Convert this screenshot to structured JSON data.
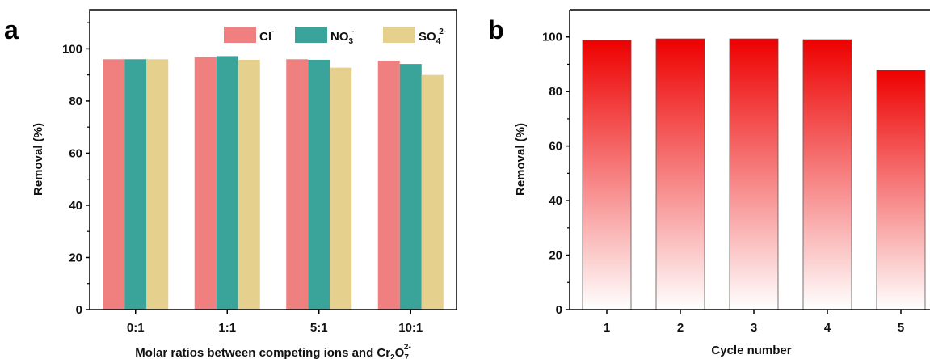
{
  "chart_data": [
    {
      "panel": "a",
      "type": "bar",
      "xlabel_main": "Molar ratios between competing ions and Cr",
      "xlabel_sub1": "2",
      "xlabel_mid": "O",
      "xlabel_sub2": "7",
      "xlabel_sup": "2-",
      "ylabel": "Removal (%)",
      "ylim": [
        0,
        115
      ],
      "yticks": [
        "0",
        "20",
        "40",
        "60",
        "80",
        "100"
      ],
      "categories": [
        "0:1",
        "1:1",
        "5:1",
        "10:1"
      ],
      "legend_position": "top-right",
      "series": [
        {
          "base": "Cl",
          "sub": "",
          "sup": "-",
          "color": "#f08080",
          "values": [
            96,
            96.8,
            96,
            95.5
          ]
        },
        {
          "base": "NO",
          "sub": "3",
          "sup": "-",
          "color": "#3aa39a",
          "values": [
            96,
            97.2,
            95.8,
            94.2
          ]
        },
        {
          "base": "SO",
          "sub": "4",
          "sup": "2-",
          "color": "#e6d08e",
          "values": [
            96,
            95.8,
            92.8,
            90
          ]
        }
      ]
    },
    {
      "panel": "b",
      "type": "bar",
      "xlabel": "Cycle number",
      "ylabel": "Removal (%)",
      "ylim": [
        0,
        110
      ],
      "yticks": [
        "0",
        "20",
        "40",
        "60",
        "80",
        "100"
      ],
      "categories": [
        "1",
        "2",
        "3",
        "4",
        "5"
      ],
      "values": [
        98.8,
        99.3,
        99.3,
        99,
        87.8
      ],
      "color_top": "#ee0000",
      "color_bottom": "#ffffff"
    }
  ]
}
